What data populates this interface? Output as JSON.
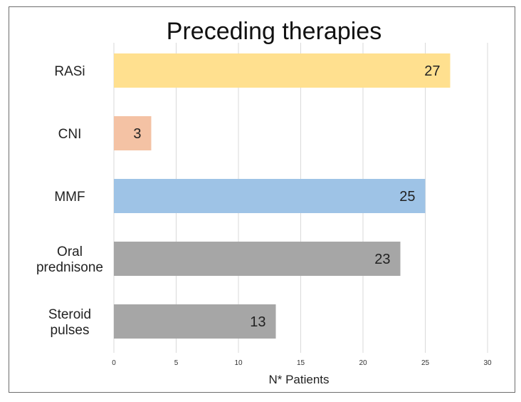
{
  "chart_data": {
    "type": "bar",
    "orientation": "horizontal",
    "title": "Preceding therapies",
    "xlabel": "N* Patients",
    "ylabel": "",
    "categories": [
      [
        "RASi"
      ],
      [
        "CNI"
      ],
      [
        "MMF"
      ],
      [
        "Oral",
        "prednisone"
      ],
      [
        "Steroid",
        "pulses"
      ]
    ],
    "values": [
      27,
      3,
      25,
      23,
      13
    ],
    "colors": [
      "#ffe08f",
      "#f4c2a4",
      "#9ec3e6",
      "#a6a6a6",
      "#a6a6a6"
    ],
    "xlim": [
      0,
      30
    ],
    "xticks": [
      0,
      5,
      10,
      15,
      20,
      25,
      30
    ],
    "grid": "vertical",
    "data_labels": true
  }
}
